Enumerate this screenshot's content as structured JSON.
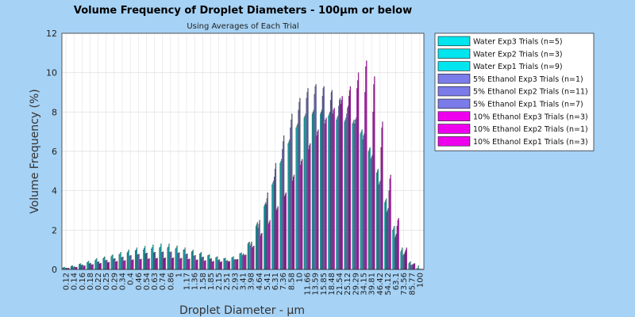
{
  "chart_data": {
    "type": "bar",
    "title": "Volume Frequency of Droplet Diameters - 100μm or below",
    "subtitle": "Using Averages of Each Trial",
    "xlabel": "Droplet Diameter - μm",
    "ylabel": "Volume Frequency (%)",
    "ylim": [
      0,
      12
    ],
    "yticks": [
      0,
      2,
      4,
      6,
      8,
      10,
      12
    ],
    "grid": true,
    "legend_position": "top-right outside",
    "categories": [
      "0.12",
      "0.14",
      "0.16",
      "0.18",
      "0.22",
      "0.25",
      "0.29",
      "0.34",
      "0.4",
      "0.46",
      "0.54",
      "0.63",
      "0.74",
      "0.86",
      "1",
      "1.17",
      "1.36",
      "1.58",
      "1.85",
      "2.15",
      "2.51",
      "2.93",
      "3.41",
      "3.98",
      "4.64",
      "5.41",
      "6.31",
      "7.36",
      "8.58",
      "10",
      "11.66",
      "13.59",
      "15.85",
      "18.48",
      "21.54",
      "25.12",
      "29.29",
      "34.15",
      "39.81",
      "46.42",
      "54.12",
      "63.1",
      "73.56",
      "85.77",
      "100"
    ],
    "series": [
      {
        "name": "Water Exp3 Trials (n=5)",
        "color": "#00e5ee",
        "values": [
          0.08,
          0.15,
          0.25,
          0.35,
          0.45,
          0.55,
          0.65,
          0.75,
          0.85,
          0.95,
          1.0,
          1.05,
          1.1,
          1.1,
          1.05,
          1.0,
          0.9,
          0.8,
          0.7,
          0.6,
          0.55,
          0.6,
          0.8,
          1.3,
          2.2,
          3.2,
          4.3,
          5.4,
          6.4,
          7.2,
          7.7,
          7.9,
          7.9,
          7.8,
          7.6,
          7.5,
          7.4,
          6.9,
          6.0,
          4.9,
          3.4,
          2.0,
          0.9,
          0.3,
          0.05
        ]
      },
      {
        "name": "Water Exp2 Trials (n=3)",
        "color": "#00e5ee",
        "values": [
          0.1,
          0.18,
          0.28,
          0.38,
          0.5,
          0.6,
          0.7,
          0.8,
          0.9,
          1.0,
          1.08,
          1.12,
          1.15,
          1.15,
          1.1,
          1.0,
          0.92,
          0.82,
          0.72,
          0.62,
          0.56,
          0.62,
          0.82,
          1.35,
          2.3,
          3.3,
          4.4,
          5.5,
          6.5,
          7.3,
          7.8,
          8.0,
          8.0,
          7.9,
          7.7,
          7.6,
          7.5,
          7.0,
          6.1,
          5.0,
          3.5,
          2.1,
          1.0,
          0.35,
          0.05
        ]
      },
      {
        "name": "Water Exp1 Trials (n=9)",
        "color": "#00e5ee",
        "values": [
          0.12,
          0.2,
          0.3,
          0.42,
          0.55,
          0.65,
          0.75,
          0.88,
          1.0,
          1.1,
          1.18,
          1.25,
          1.3,
          1.3,
          1.2,
          1.1,
          1.0,
          0.88,
          0.76,
          0.65,
          0.58,
          0.65,
          0.85,
          1.4,
          2.4,
          3.4,
          4.5,
          5.6,
          6.6,
          7.4,
          7.9,
          8.1,
          8.1,
          8.0,
          7.8,
          7.7,
          7.6,
          7.1,
          6.2,
          5.1,
          3.6,
          2.2,
          1.1,
          0.4,
          0.2
        ]
      },
      {
        "name": "5% Ethanol Exp3 Trials (n=1)",
        "color": "#7b7bea",
        "values": [
          0.06,
          0.12,
          0.2,
          0.28,
          0.36,
          0.44,
          0.52,
          0.6,
          0.68,
          0.74,
          0.8,
          0.84,
          0.86,
          0.86,
          0.82,
          0.76,
          0.68,
          0.6,
          0.52,
          0.46,
          0.42,
          0.48,
          0.7,
          1.2,
          2.1,
          3.3,
          4.7,
          6.1,
          7.2,
          8.1,
          8.7,
          8.9,
          8.8,
          8.6,
          8.3,
          7.9,
          7.4,
          6.6,
          5.6,
          4.3,
          2.9,
          1.6,
          0.7,
          0.2,
          0.02
        ]
      },
      {
        "name": "5% Ethanol Exp2 Trials (n=11)",
        "color": "#7b7bea",
        "values": [
          0.07,
          0.13,
          0.22,
          0.3,
          0.38,
          0.46,
          0.54,
          0.62,
          0.7,
          0.76,
          0.82,
          0.86,
          0.88,
          0.88,
          0.84,
          0.78,
          0.7,
          0.62,
          0.54,
          0.48,
          0.44,
          0.5,
          0.75,
          1.3,
          2.3,
          3.6,
          5.1,
          6.5,
          7.6,
          8.5,
          9.0,
          9.3,
          9.2,
          9.0,
          8.6,
          8.2,
          7.6,
          6.8,
          5.7,
          4.4,
          3.0,
          1.7,
          0.75,
          0.22,
          0.02
        ]
      },
      {
        "name": "5% Ethanol Exp1 Trials (n=7)",
        "color": "#7b7bea",
        "values": [
          0.08,
          0.14,
          0.24,
          0.32,
          0.4,
          0.48,
          0.56,
          0.64,
          0.72,
          0.78,
          0.84,
          0.88,
          0.9,
          0.9,
          0.86,
          0.8,
          0.72,
          0.64,
          0.56,
          0.5,
          0.46,
          0.52,
          0.8,
          1.4,
          2.5,
          3.9,
          5.4,
          6.8,
          7.9,
          8.7,
          9.2,
          9.4,
          9.3,
          9.1,
          8.7,
          8.3,
          7.7,
          6.9,
          5.8,
          4.5,
          3.1,
          1.8,
          0.8,
          0.25,
          0.02
        ]
      },
      {
        "name": "10% Ethanol Exp3 Trials (n=3)",
        "color": "#ee00ee",
        "values": [
          0.05,
          0.1,
          0.16,
          0.22,
          0.28,
          0.33,
          0.38,
          0.42,
          0.46,
          0.49,
          0.52,
          0.54,
          0.55,
          0.55,
          0.53,
          0.5,
          0.46,
          0.42,
          0.38,
          0.36,
          0.38,
          0.48,
          0.7,
          1.1,
          1.7,
          2.3,
          3.0,
          3.7,
          4.5,
          5.3,
          6.1,
          6.8,
          7.4,
          7.9,
          8.4,
          8.8,
          9.2,
          9.0,
          8.0,
          6.2,
          4.0,
          2.2,
          0.9,
          0.25,
          0.02
        ]
      },
      {
        "name": "10% Ethanol Exp2 Trials (n=1)",
        "color": "#ee00ee",
        "values": [
          0.06,
          0.11,
          0.18,
          0.24,
          0.3,
          0.35,
          0.4,
          0.44,
          0.48,
          0.51,
          0.54,
          0.56,
          0.57,
          0.57,
          0.55,
          0.52,
          0.48,
          0.44,
          0.4,
          0.38,
          0.4,
          0.5,
          0.72,
          1.15,
          1.8,
          2.4,
          3.1,
          3.8,
          4.7,
          5.5,
          6.3,
          7.0,
          7.6,
          8.1,
          8.6,
          9.1,
          9.6,
          10.3,
          9.4,
          7.2,
          4.6,
          2.5,
          1.0,
          0.3,
          0.02
        ]
      },
      {
        "name": "10% Ethanol Exp1 Trials (n=3)",
        "color": "#ee00ee",
        "values": [
          0.07,
          0.12,
          0.2,
          0.26,
          0.32,
          0.37,
          0.42,
          0.46,
          0.5,
          0.53,
          0.56,
          0.58,
          0.59,
          0.59,
          0.57,
          0.54,
          0.5,
          0.46,
          0.42,
          0.4,
          0.42,
          0.52,
          0.75,
          1.2,
          1.85,
          2.5,
          3.2,
          3.9,
          4.8,
          5.6,
          6.4,
          7.1,
          7.7,
          8.2,
          8.8,
          9.3,
          10.0,
          10.6,
          9.8,
          7.5,
          4.8,
          2.6,
          1.1,
          0.3,
          0.02
        ]
      }
    ]
  }
}
